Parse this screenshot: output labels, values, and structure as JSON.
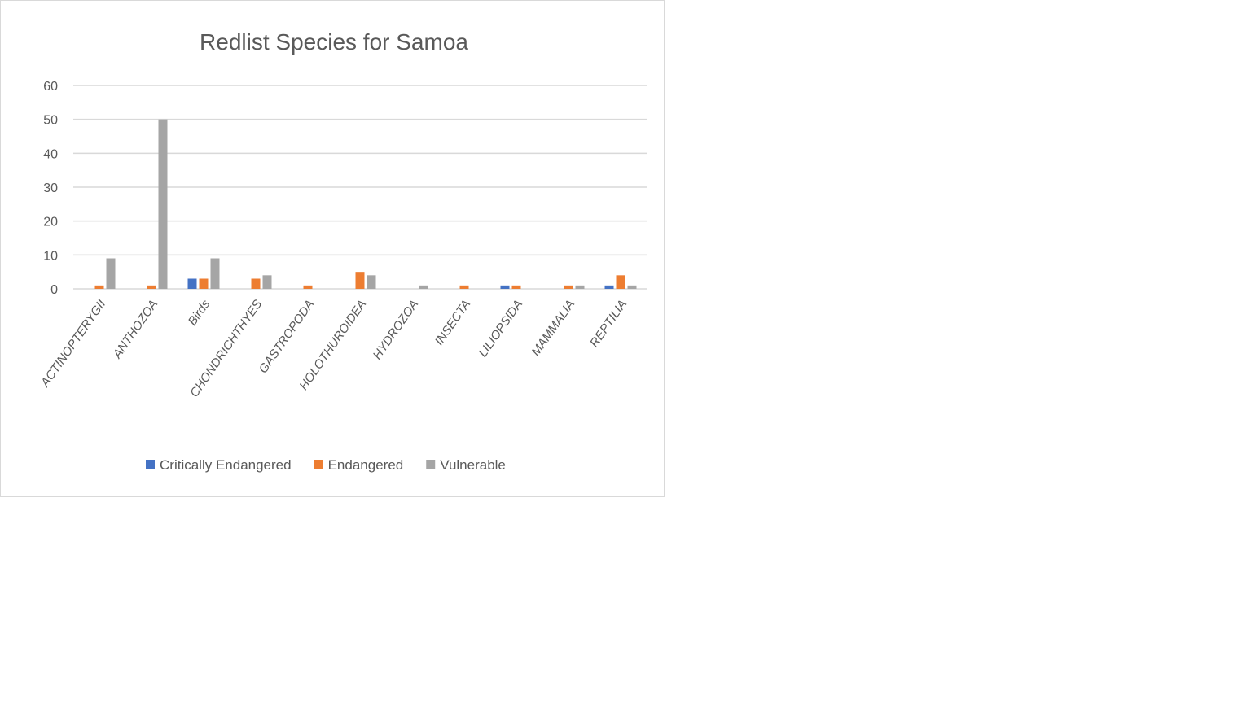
{
  "chart_data": {
    "type": "bar",
    "title": "Redlist Species for Samoa",
    "categories": [
      "ACTINOPTERYGII",
      "ANTHOZOA",
      "Birds",
      "CHONDRICHTHYES",
      "GASTROPODA",
      "HOLOTHUROIDEA",
      "HYDROZOA",
      "INSECTA",
      "LILIOPSIDA",
      "MAMMALIA",
      "REPTILIA"
    ],
    "series": [
      {
        "name": "Critically Endangered",
        "color": "#4472c4",
        "values": [
          0,
          0,
          3,
          0,
          0,
          0,
          0,
          0,
          1,
          0,
          1
        ]
      },
      {
        "name": "Endangered",
        "color": "#ed7d31",
        "values": [
          1,
          1,
          3,
          3,
          1,
          5,
          0,
          1,
          1,
          1,
          4
        ]
      },
      {
        "name": "Vulnerable",
        "color": "#a5a5a5",
        "values": [
          9,
          50,
          9,
          4,
          0,
          4,
          1,
          0,
          0,
          1,
          1
        ]
      }
    ],
    "ylim": [
      0,
      60
    ],
    "yticks": [
      0,
      10,
      20,
      30,
      40,
      50,
      60
    ],
    "grid": true,
    "legend": "bottom"
  }
}
